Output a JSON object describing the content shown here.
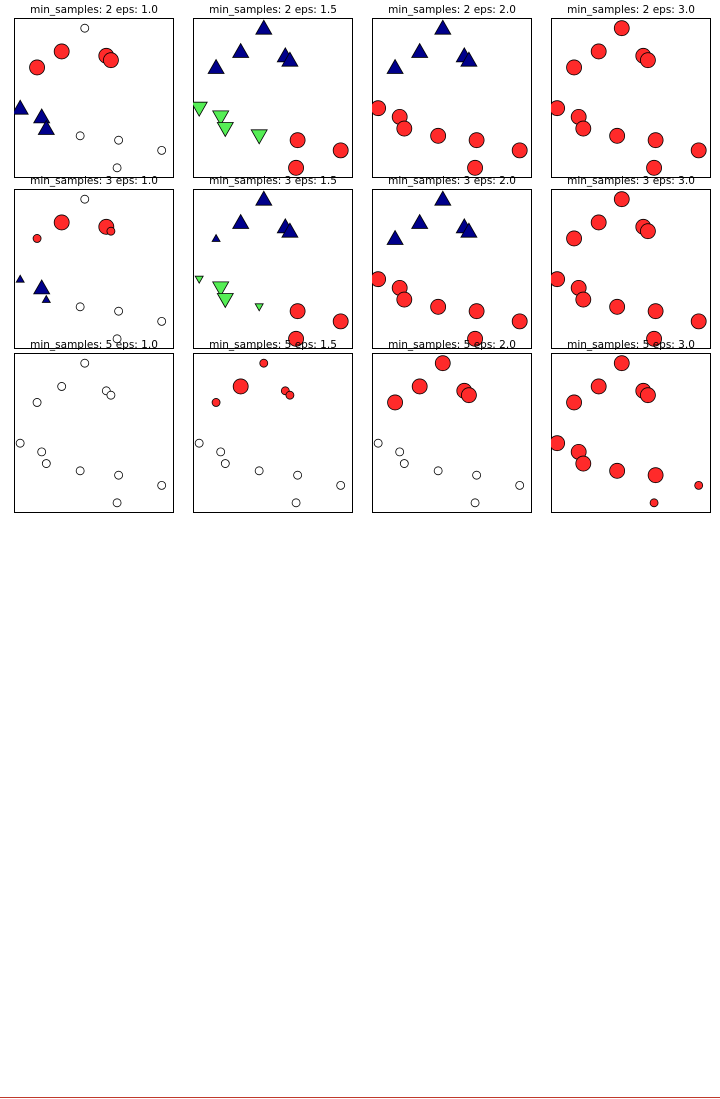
{
  "colors": {
    "cluster_0": "#ff2a2a",
    "cluster_1": "#00008b",
    "cluster_2": "#55ee55",
    "noise": "#ffffff",
    "edge": "#000000",
    "page_rule": "#c0392b"
  },
  "panels": [
    {
      "title": "min_samples: 2 eps: 1.0"
    },
    {
      "title": "min_samples: 2 eps: 1.5"
    },
    {
      "title": "min_samples: 2 eps: 2.0"
    },
    {
      "title": "min_samples: 2 eps: 3.0"
    },
    {
      "title": "min_samples: 3 eps: 1.0"
    },
    {
      "title": "min_samples: 3 eps: 1.5"
    },
    {
      "title": "min_samples: 3 eps: 2.0"
    },
    {
      "title": "min_samples: 3 eps: 3.0"
    },
    {
      "title": "min_samples: 5 eps: 1.0"
    },
    {
      "title": "min_samples: 5 eps: 1.5"
    },
    {
      "title": "min_samples: 5 eps: 2.0"
    },
    {
      "title": "min_samples: 5 eps: 3.0"
    }
  ],
  "chart_data": {
    "type": "scatter",
    "grid": false,
    "x": [
      0.45,
      1.25,
      2.0,
      2.7,
      2.85,
      -0.1,
      0.6,
      0.75,
      1.85,
      3.1,
      4.5,
      3.05
    ],
    "y": [
      8.1,
      9.2,
      10.8,
      8.9,
      8.6,
      5.3,
      4.7,
      3.9,
      3.4,
      3.1,
      2.4,
      1.2
    ],
    "xlim": [
      -0.3,
      4.9
    ],
    "ylim": [
      0.5,
      11.5
    ],
    "markers": {
      "-1": "circle",
      "0": "circle",
      "1": "triangle-up",
      "2": "triangle-down"
    },
    "panels": [
      {
        "min_samples": 2,
        "eps": 1.0,
        "labels": [
          0,
          0,
          -1,
          0,
          0,
          1,
          1,
          1,
          -1,
          -1,
          -1,
          -1
        ],
        "core": [
          1,
          1,
          0,
          1,
          1,
          1,
          1,
          1,
          0,
          0,
          0,
          0
        ]
      },
      {
        "min_samples": 2,
        "eps": 1.5,
        "labels": [
          1,
          1,
          1,
          1,
          1,
          2,
          2,
          2,
          2,
          0,
          0,
          0
        ],
        "core": [
          1,
          1,
          1,
          1,
          1,
          1,
          1,
          1,
          1,
          1,
          1,
          1
        ]
      },
      {
        "min_samples": 2,
        "eps": 2.0,
        "labels": [
          1,
          1,
          1,
          1,
          1,
          0,
          0,
          0,
          0,
          0,
          0,
          0
        ],
        "core": [
          1,
          1,
          1,
          1,
          1,
          1,
          1,
          1,
          1,
          1,
          1,
          1
        ]
      },
      {
        "min_samples": 2,
        "eps": 3.0,
        "labels": [
          0,
          0,
          0,
          0,
          0,
          0,
          0,
          0,
          0,
          0,
          0,
          0
        ],
        "core": [
          1,
          1,
          1,
          1,
          1,
          1,
          1,
          1,
          1,
          1,
          1,
          1
        ]
      },
      {
        "min_samples": 3,
        "eps": 1.0,
        "labels": [
          0,
          0,
          -1,
          0,
          0,
          1,
          1,
          1,
          -1,
          -1,
          -1,
          -1
        ],
        "core": [
          0,
          1,
          0,
          1,
          0,
          0,
          1,
          0,
          0,
          0,
          0,
          0
        ]
      },
      {
        "min_samples": 3,
        "eps": 1.5,
        "labels": [
          1,
          1,
          1,
          1,
          1,
          2,
          2,
          2,
          2,
          0,
          0,
          0
        ],
        "core": [
          0,
          1,
          1,
          1,
          1,
          0,
          1,
          1,
          0,
          1,
          1,
          1
        ]
      },
      {
        "min_samples": 3,
        "eps": 2.0,
        "labels": [
          1,
          1,
          1,
          1,
          1,
          0,
          0,
          0,
          0,
          0,
          0,
          0
        ],
        "core": [
          1,
          1,
          1,
          1,
          1,
          1,
          1,
          1,
          1,
          1,
          1,
          1
        ]
      },
      {
        "min_samples": 3,
        "eps": 3.0,
        "labels": [
          0,
          0,
          0,
          0,
          0,
          0,
          0,
          0,
          0,
          0,
          0,
          0
        ],
        "core": [
          1,
          1,
          1,
          1,
          1,
          1,
          1,
          1,
          1,
          1,
          1,
          1
        ]
      },
      {
        "min_samples": 5,
        "eps": 1.0,
        "labels": [
          -1,
          -1,
          -1,
          -1,
          -1,
          -1,
          -1,
          -1,
          -1,
          -1,
          -1,
          -1
        ],
        "core": [
          0,
          0,
          0,
          0,
          0,
          0,
          0,
          0,
          0,
          0,
          0,
          0
        ]
      },
      {
        "min_samples": 5,
        "eps": 1.5,
        "labels": [
          0,
          0,
          0,
          0,
          0,
          -1,
          -1,
          -1,
          -1,
          -1,
          -1,
          -1
        ],
        "core": [
          0,
          1,
          0,
          0,
          0,
          0,
          0,
          0,
          0,
          0,
          0,
          0
        ]
      },
      {
        "min_samples": 5,
        "eps": 2.0,
        "labels": [
          0,
          0,
          0,
          0,
          0,
          -1,
          -1,
          -1,
          -1,
          -1,
          -1,
          -1
        ],
        "core": [
          1,
          1,
          1,
          1,
          1,
          0,
          0,
          0,
          0,
          0,
          0,
          0
        ]
      },
      {
        "min_samples": 5,
        "eps": 3.0,
        "labels": [
          0,
          0,
          0,
          0,
          0,
          0,
          0,
          0,
          0,
          0,
          0,
          0
        ],
        "core": [
          1,
          1,
          1,
          1,
          1,
          1,
          1,
          1,
          1,
          1,
          0,
          0
        ]
      }
    ]
  }
}
